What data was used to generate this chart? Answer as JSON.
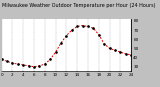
{
  "hours": [
    0,
    1,
    2,
    3,
    4,
    5,
    6,
    7,
    8,
    9,
    10,
    11,
    12,
    13,
    14,
    15,
    16,
    17,
    18,
    19,
    20,
    21,
    22,
    23,
    24
  ],
  "temps": [
    38,
    36,
    34,
    33,
    32,
    31,
    30,
    31,
    33,
    38,
    46,
    56,
    64,
    70,
    74,
    75,
    74,
    72,
    65,
    55,
    50,
    48,
    46,
    44,
    43
  ],
  "title": "Milwaukee Weather Outdoor Temperature per Hour (24 Hours)",
  "title_fontsize": 3.5,
  "line_color": "#dd0000",
  "marker_color": "#000000",
  "bg_color": "#c0c0c0",
  "plot_bg_color": "#ffffff",
  "grid_color": "#888888",
  "ylim": [
    25,
    82
  ],
  "xlim": [
    0,
    24
  ],
  "yticks": [
    30,
    40,
    50,
    60,
    70,
    80
  ],
  "xticks": [
    0,
    2,
    4,
    6,
    8,
    10,
    12,
    14,
    16,
    18,
    20,
    22,
    24
  ],
  "ylabel_fontsize": 3.0,
  "xlabel_fontsize": 3.0
}
